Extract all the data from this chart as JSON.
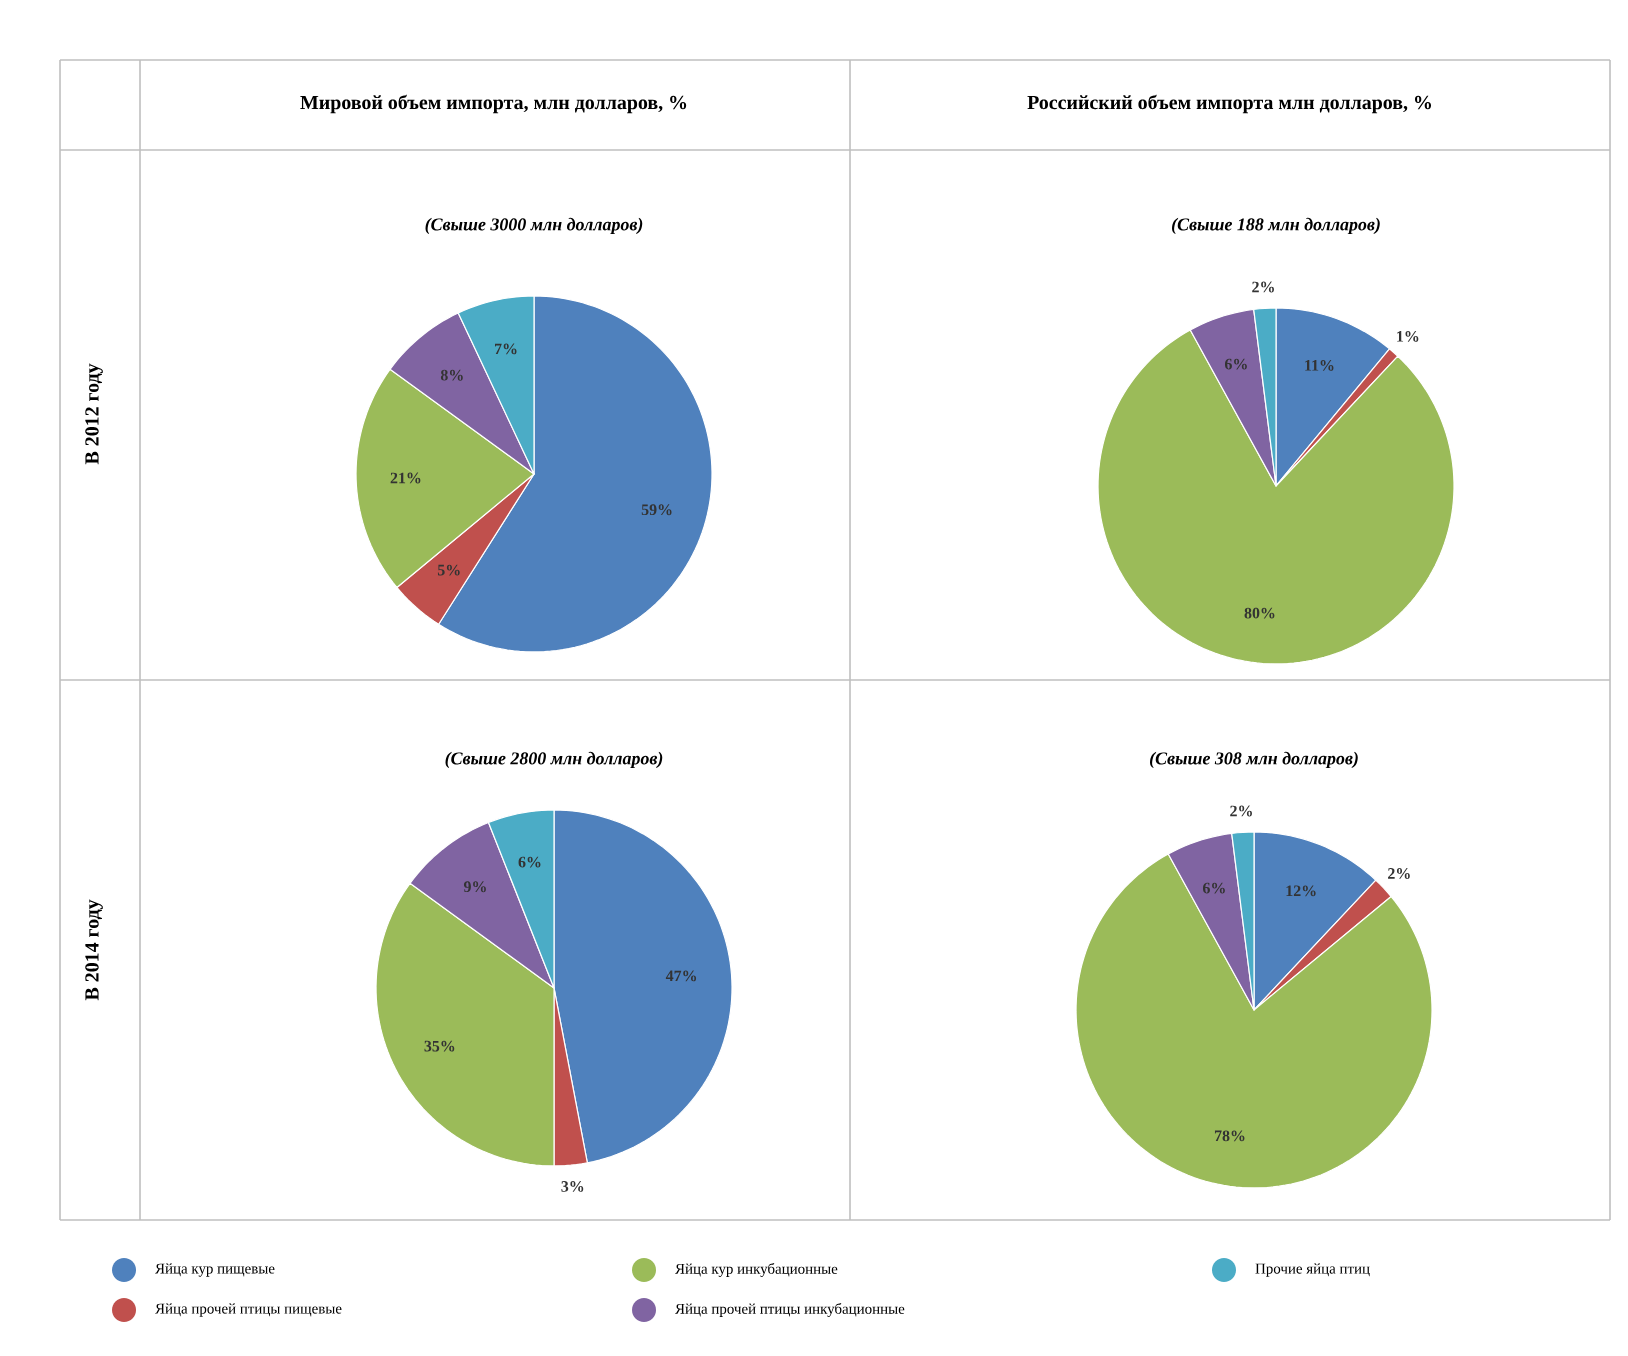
{
  "chart_data": [
    {
      "type": "pie",
      "title": "Мировой объем импорта, млн долларов, %",
      "subtitle": "(Свыше 3000 млн долларов)",
      "ylabel": "В 2012 году",
      "legend": "bottom",
      "categories": [
        "Яйца кур пищевые",
        "Яйца прочей птицы пищевые",
        "Яйца кур инкубационные",
        "Яйца прочей птицы инкубационные",
        "Прочие яйца птиц"
      ],
      "values": [
        59,
        5,
        21,
        8,
        7
      ],
      "value_labels": [
        "59%",
        "5%",
        "21%",
        "8%",
        "7%"
      ],
      "colors": [
        "#4f81bd",
        "#c0504d",
        "#9bbb59",
        "#8064a2",
        "#4bacc6"
      ]
    },
    {
      "type": "pie",
      "title": "Российский объем импорта млн долларов, %",
      "subtitle": "(Свыше 188 млн долларов)",
      "categories": [
        null,
        null,
        null,
        null,
        null
      ],
      "values": [
        11,
        1,
        80,
        6,
        2
      ],
      "value_labels": [
        "11%",
        "1%",
        "80%",
        "6%",
        "2%"
      ],
      "colors": [
        "#4f81bd",
        "#c0504d",
        "#9bbb59",
        "#8064a2",
        "#4bacc6"
      ]
    },
    {
      "type": "pie",
      "subtitle": "(Свыше 2800 млн долларов)",
      "ylabel": "В 2014 году",
      "categories": [
        null,
        null,
        null,
        null,
        null
      ],
      "values": [
        47,
        3,
        35,
        9,
        6
      ],
      "value_labels": [
        "47%",
        "3%",
        "35%",
        "9%",
        "6%"
      ],
      "colors": [
        "#4f81bd",
        "#c0504d",
        "#9bbb59",
        "#8064a2",
        "#4bacc6"
      ]
    },
    {
      "type": "pie",
      "subtitle": "(Свыше 308 млн долларов)",
      "categories": [
        null,
        null,
        null,
        null,
        null
      ],
      "values": [
        12,
        2,
        78,
        6,
        2
      ],
      "value_labels": [
        "12%",
        "2%",
        "78%",
        "6%",
        "2%"
      ],
      "colors": [
        "#4f81bd",
        "#c0504d",
        "#9bbb59",
        "#8064a2",
        "#4bacc6"
      ]
    }
  ]
}
